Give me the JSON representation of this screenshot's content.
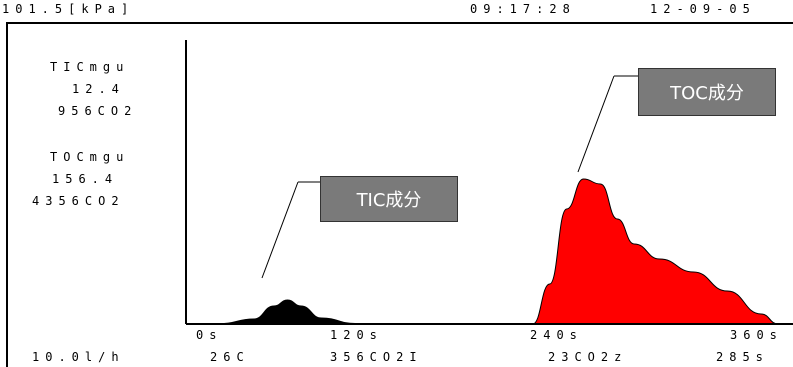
{
  "header": {
    "pressure": "101.5[kPa]",
    "time": "09:17:28",
    "date": "12-09-05"
  },
  "side_panel": {
    "tic_label": "TICmgu",
    "tic_value": "12.4",
    "tic_sub": "956CO2",
    "toc_label": "TOCmgu",
    "toc_value": "156.4",
    "toc_sub": "4356CO2"
  },
  "callouts": {
    "tic": "TIC成分",
    "toc": "TOC成分"
  },
  "axis": {
    "tick_0": "0s",
    "tick_120": "120s",
    "tick_240": "240s",
    "tick_360": "360s"
  },
  "footer": {
    "flow": "10.0l/h",
    "f1": "26C",
    "f2": "356CO2I",
    "f3": "23CO2z",
    "f4": "285s"
  },
  "chart_data": {
    "type": "area",
    "x_unit": "s",
    "xlim": [
      0,
      360
    ],
    "series": [
      {
        "name": "TIC成分",
        "color": "#000000",
        "x": [
          0,
          20,
          40,
          52,
          60,
          68,
          80,
          100,
          120
        ],
        "y": [
          0,
          0.3,
          5,
          18,
          24,
          18,
          6,
          0.5,
          0
        ]
      },
      {
        "name": "TOC成分",
        "color": "#ff0000",
        "x": [
          205,
          215,
          225,
          235,
          245,
          255,
          265,
          280,
          300,
          320,
          340,
          350
        ],
        "y": [
          0,
          40,
          115,
          145,
          140,
          105,
          80,
          65,
          52,
          33,
          10,
          0
        ]
      }
    ]
  }
}
